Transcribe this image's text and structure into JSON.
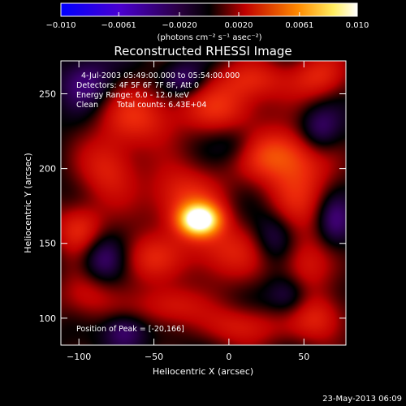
{
  "chart_data": {
    "type": "heatmap",
    "title": "Reconstructed RHESSI Image",
    "xlabel": "Heliocentric X (arcsec)",
    "ylabel": "Heliocentric Y (arcsec)",
    "xlim": [
      -112,
      78
    ],
    "ylim": [
      82,
      272
    ],
    "xticks": [
      -100,
      -50,
      0,
      50
    ],
    "yticks": [
      100,
      150,
      200,
      250
    ],
    "colorbar": {
      "range": [
        -0.01,
        0.01
      ],
      "tick_values": [
        -0.01,
        -0.0061,
        -0.002,
        0.002,
        0.0061,
        0.01
      ],
      "tick_labels": [
        "-0.010",
        "-0.0061",
        "-0.0020",
        "0.0020",
        "0.0061",
        "0.010"
      ],
      "units": "(photons cm⁻² s⁻¹ asec⁻²)",
      "colors": [
        "#0000ff",
        "#5a00cf",
        "#000000",
        "#c80000",
        "#ff8c00",
        "#ffff80",
        "#ffffff"
      ]
    },
    "annotations": {
      "time": "4-Jul-2003 05:49:00.000 to 05:54:00.000",
      "detectors": "Detectors: 4F 5F 6F 7F 8F, Att 0",
      "energy": "Energy Range: 6.0 - 12.0 keV",
      "algorithm": "Clean",
      "counts": "Total counts: 6.43E+04",
      "peak": "Position of Peak = [-20,166]"
    },
    "peak": [
      -20,
      166
    ],
    "blobs": [
      {
        "x": -20,
        "y": 166,
        "value": 0.01,
        "sx": 9,
        "sy": 7
      },
      {
        "x": -30,
        "y": 180,
        "value": 0.0035,
        "sx": 18,
        "sy": 16
      },
      {
        "x": -5,
        "y": 145,
        "value": 0.003,
        "sx": 20,
        "sy": 15
      },
      {
        "x": 28,
        "y": 210,
        "value": 0.0036,
        "sx": 22,
        "sy": 12
      },
      {
        "x": 45,
        "y": 188,
        "value": 0.003,
        "sx": 16,
        "sy": 22
      },
      {
        "x": -60,
        "y": 235,
        "value": 0.0032,
        "sx": 18,
        "sy": 14
      },
      {
        "x": -5,
        "y": 240,
        "value": 0.003,
        "sx": 20,
        "sy": 12
      },
      {
        "x": 60,
        "y": 262,
        "value": 0.003,
        "sx": 14,
        "sy": 12
      },
      {
        "x": -80,
        "y": 200,
        "value": 0.003,
        "sx": 14,
        "sy": 16
      },
      {
        "x": -100,
        "y": 160,
        "value": 0.0034,
        "sx": 12,
        "sy": 12
      },
      {
        "x": -95,
        "y": 115,
        "value": 0.0024,
        "sx": 14,
        "sy": 12
      },
      {
        "x": -40,
        "y": 108,
        "value": 0.0028,
        "sx": 16,
        "sy": 10
      },
      {
        "x": 10,
        "y": 95,
        "value": 0.0028,
        "sx": 18,
        "sy": 10
      },
      {
        "x": 60,
        "y": 100,
        "value": 0.003,
        "sx": 14,
        "sy": 12
      },
      {
        "x": 50,
        "y": 135,
        "value": 0.0026,
        "sx": 12,
        "sy": 14
      },
      {
        "x": -55,
        "y": 140,
        "value": 0.0026,
        "sx": 14,
        "sy": 12
      },
      {
        "x": 15,
        "y": 260,
        "value": 0.0028,
        "sx": 18,
        "sy": 10
      },
      {
        "x": -95,
        "y": 258,
        "value": -0.0022,
        "sx": 12,
        "sy": 12
      },
      {
        "x": 5,
        "y": 215,
        "value": -0.002,
        "sx": 12,
        "sy": 10
      },
      {
        "x": 30,
        "y": 155,
        "value": -0.0022,
        "sx": 10,
        "sy": 12
      },
      {
        "x": 60,
        "y": 225,
        "value": -0.0024,
        "sx": 10,
        "sy": 12
      },
      {
        "x": -85,
        "y": 140,
        "value": -0.0024,
        "sx": 10,
        "sy": 12
      },
      {
        "x": -70,
        "y": 92,
        "value": -0.0022,
        "sx": 10,
        "sy": 8
      },
      {
        "x": 40,
        "y": 115,
        "value": -0.0022,
        "sx": 10,
        "sy": 10
      },
      {
        "x": -30,
        "y": 260,
        "value": -0.0022,
        "sx": 10,
        "sy": 8
      },
      {
        "x": 70,
        "y": 165,
        "value": -0.0022,
        "sx": 8,
        "sy": 12
      }
    ]
  },
  "footer": {
    "timestamp": "23-May-2013 06:09"
  }
}
